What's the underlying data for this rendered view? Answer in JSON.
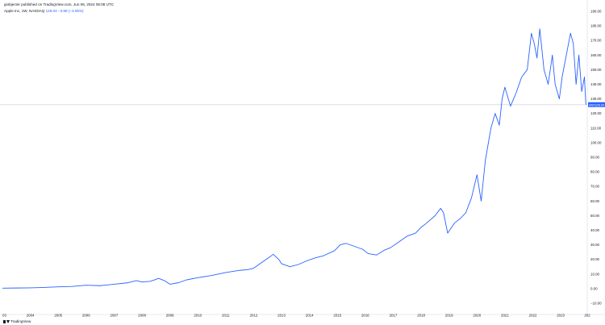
{
  "header": {
    "publisher_line": "giobjecter published on TradingView.com, Jun 06, 2024 06:08 UTC"
  },
  "symbol": {
    "name": "Apple Inc, 1W, NASDAQ",
    "last": "126.04",
    "change": "−3.98 (−3.06%)"
  },
  "price_tag": {
    "symbol": "AAPL",
    "value": "126.04"
  },
  "footer": {
    "brand": "TradingView"
  },
  "colors": {
    "line": "#2962ff",
    "grid": "#e0e3eb",
    "tag": "#2962ff"
  },
  "chart_data": {
    "type": "line",
    "title": "Apple Inc, 1W, NASDAQ",
    "xlabel": "",
    "ylabel": "",
    "ylim": [
      -15,
      195
    ],
    "xlim": [
      2003.0,
      2023.95
    ],
    "y_ticks": [
      "190.00",
      "180.00",
      "170.00",
      "160.00",
      "150.00",
      "140.00",
      "130.00",
      "120.00",
      "110.00",
      "100.00",
      "90.00",
      "80.00",
      "70.00",
      "60.00",
      "50.00",
      "40.00",
      "30.00",
      "20.00",
      "10.00",
      "0.00",
      "−10.00"
    ],
    "y_tick_values": [
      190,
      180,
      170,
      160,
      150,
      140,
      130,
      120,
      110,
      100,
      90,
      80,
      70,
      60,
      50,
      40,
      30,
      20,
      10,
      0,
      -10
    ],
    "x_ticks": [
      "03",
      "2004",
      "2005",
      "2006",
      "2007",
      "2008",
      "2009",
      "2010",
      "2011",
      "2012",
      "2013",
      "2014",
      "2015",
      "2016",
      "2017",
      "2018",
      "2019",
      "2020",
      "2021",
      "2022",
      "2023",
      "202"
    ],
    "x_tick_values": [
      2003,
      2004,
      2005,
      2006,
      2007,
      2008,
      2009,
      2010,
      2011,
      2012,
      2013,
      2014,
      2015,
      2016,
      2017,
      2018,
      2019,
      2020,
      2021,
      2022,
      2023,
      2023.95
    ],
    "grid": false,
    "last_price_line": 126.04,
    "series": [
      {
        "x": [
          2003.0,
          2003.5,
          2004.0,
          2004.5,
          2005.0,
          2005.5,
          2006.0,
          2006.5,
          2007.0,
          2007.5,
          2007.8,
          2008.0,
          2008.3,
          2008.6,
          2008.8,
          2009.0,
          2009.3,
          2009.6,
          2010.0,
          2010.5,
          2011.0,
          2011.5,
          2011.8,
          2012.0,
          2012.3,
          2012.6,
          2012.7,
          2012.9,
          2013.0,
          2013.3,
          2013.6,
          2013.9,
          2014.2,
          2014.5,
          2014.9,
          2015.1,
          2015.3,
          2015.6,
          2015.9,
          2016.1,
          2016.4,
          2016.7,
          2016.9,
          2017.2,
          2017.5,
          2017.8,
          2018.0,
          2018.2,
          2018.5,
          2018.7,
          2018.8,
          2018.95,
          2019.2,
          2019.4,
          2019.6,
          2019.8,
          2020.0,
          2020.15,
          2020.3,
          2020.5,
          2020.65,
          2020.8,
          2020.9,
          2021.0,
          2021.2,
          2021.4,
          2021.6,
          2021.8,
          2021.95,
          2022.05,
          2022.15,
          2022.25,
          2022.4,
          2022.55,
          2022.7,
          2022.8,
          2022.95,
          2023.05,
          2023.2,
          2023.35,
          2023.45,
          2023.55,
          2023.65,
          2023.75,
          2023.85,
          2023.9
        ],
        "y": [
          0.3,
          0.4,
          0.5,
          0.8,
          1.2,
          1.5,
          2.3,
          2.0,
          3.0,
          4.0,
          5.5,
          4.5,
          5.0,
          7.0,
          5.5,
          3.0,
          4.0,
          6.0,
          7.5,
          9.0,
          11.0,
          12.5,
          13.0,
          14.0,
          18.0,
          22.0,
          23.5,
          20.0,
          17.0,
          15.0,
          16.5,
          19.0,
          21.0,
          22.5,
          26.0,
          30.0,
          31.0,
          29.0,
          27.0,
          24.0,
          23.0,
          26.5,
          28.0,
          32.0,
          36.0,
          38.0,
          42.0,
          45.0,
          50.0,
          55.0,
          52.0,
          38.0,
          45.0,
          48.0,
          52.0,
          62.0,
          78.0,
          60.0,
          88.0,
          110.0,
          120.0,
          112.0,
          130.0,
          138.0,
          125.0,
          134.0,
          145.0,
          150.0,
          175.0,
          168.0,
          158.0,
          178.0,
          150.0,
          140.0,
          160.0,
          140.0,
          130.0,
          145.0,
          160.0,
          175.0,
          168.0,
          140.0,
          160.0,
          135.0,
          145.0,
          126.04
        ]
      }
    ]
  }
}
